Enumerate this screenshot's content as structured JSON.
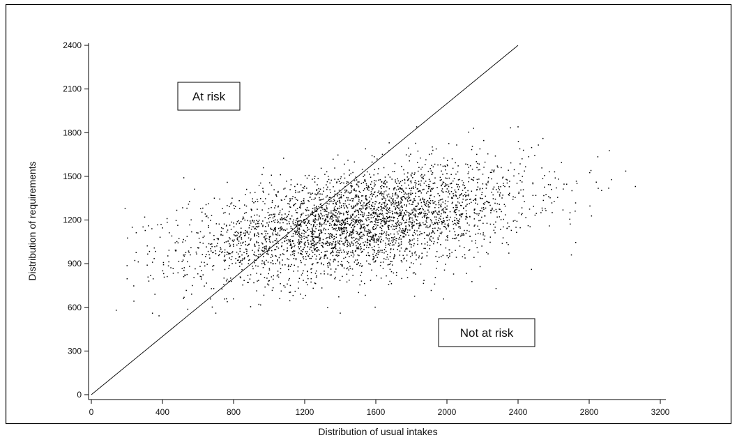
{
  "chart_data": {
    "type": "scatter",
    "title": "",
    "xlabel": "Distribution of usual intakes",
    "ylabel": "Distribution of requirements",
    "xlim": [
      0,
      3200
    ],
    "ylim": [
      0,
      2400
    ],
    "x_ticks": [
      0,
      400,
      800,
      1200,
      1600,
      2000,
      2400,
      2800,
      3200
    ],
    "y_ticks": [
      0,
      300,
      600,
      900,
      1200,
      1500,
      1800,
      2100,
      2400
    ],
    "grid": false,
    "reference_line": {
      "x": [
        0,
        2400
      ],
      "y": [
        0,
        2400
      ]
    },
    "annotations": [
      {
        "text": "At risk",
        "x": 500,
        "y": 2100
      },
      {
        "text": "Not at risk",
        "x": 2300,
        "y": 480
      }
    ],
    "point_color": "#000000",
    "cloud": {
      "count": 3600,
      "x_mean": 1500,
      "x_sd": 470,
      "y_mean": 1180,
      "y_sd": 195,
      "correlation": 0.45,
      "x_min": 130,
      "x_max": 3060,
      "y_min": 540,
      "y_max": 1840,
      "seed": 12345
    },
    "highlighted_points": [
      {
        "x": 140,
        "y": 580
      },
      {
        "x": 190,
        "y": 1280
      },
      {
        "x": 230,
        "y": 1150
      },
      {
        "x": 300,
        "y": 1220
      },
      {
        "x": 520,
        "y": 1490
      },
      {
        "x": 700,
        "y": 560
      },
      {
        "x": 1400,
        "y": 560
      },
      {
        "x": 1830,
        "y": 1840
      },
      {
        "x": 2150,
        "y": 1830
      },
      {
        "x": 2400,
        "y": 1840
      },
      {
        "x": 2540,
        "y": 1760
      },
      {
        "x": 2700,
        "y": 960
      },
      {
        "x": 2810,
        "y": 1540
      },
      {
        "x": 2840,
        "y": 1460
      },
      {
        "x": 3060,
        "y": 1430
      }
    ]
  }
}
